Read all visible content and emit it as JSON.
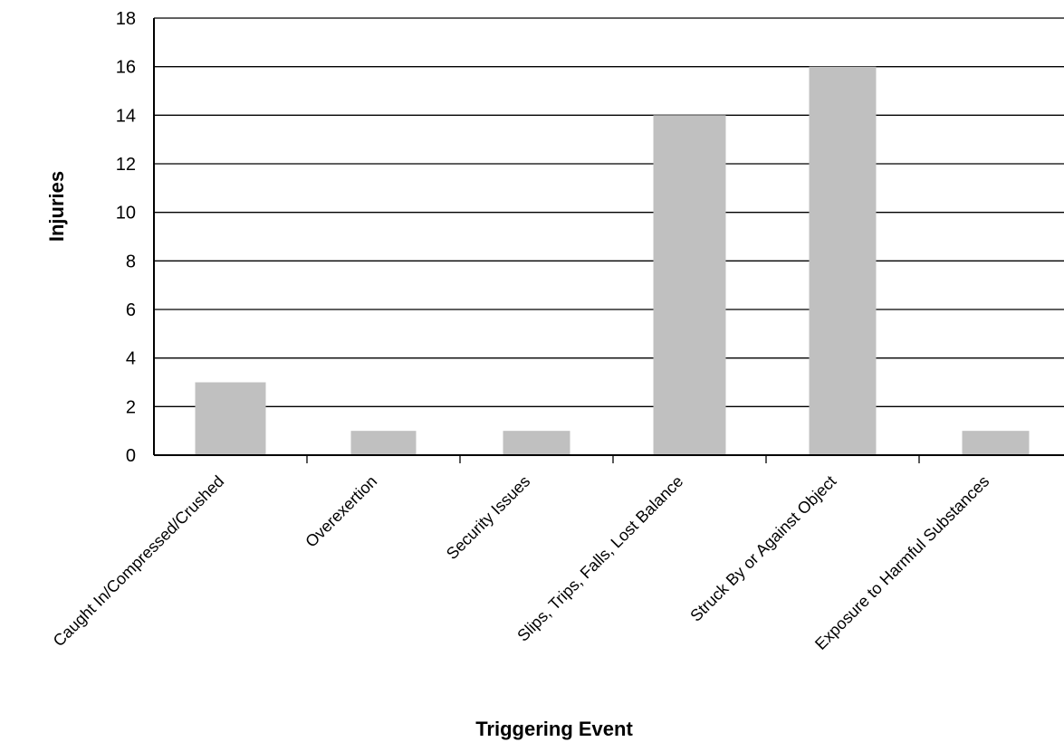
{
  "chart_data": {
    "type": "bar",
    "title": "",
    "xlabel": "Triggering Event",
    "ylabel": "Injuries",
    "ylim": [
      0,
      18
    ],
    "yticks": [
      0,
      2,
      4,
      6,
      8,
      10,
      12,
      14,
      16,
      18
    ],
    "grid": true,
    "categories": [
      "Caught In/Compressed/Crushed",
      "Overexertion",
      "Security Issues",
      "Slips, Trips, Falls, Lost Balance",
      "Struck By or Against Object",
      "Exposure to Harmful Substances"
    ],
    "series": [
      {
        "values": [
          3,
          1,
          1,
          14,
          16,
          1
        ]
      }
    ],
    "bar_color": "#c0c0c0"
  }
}
